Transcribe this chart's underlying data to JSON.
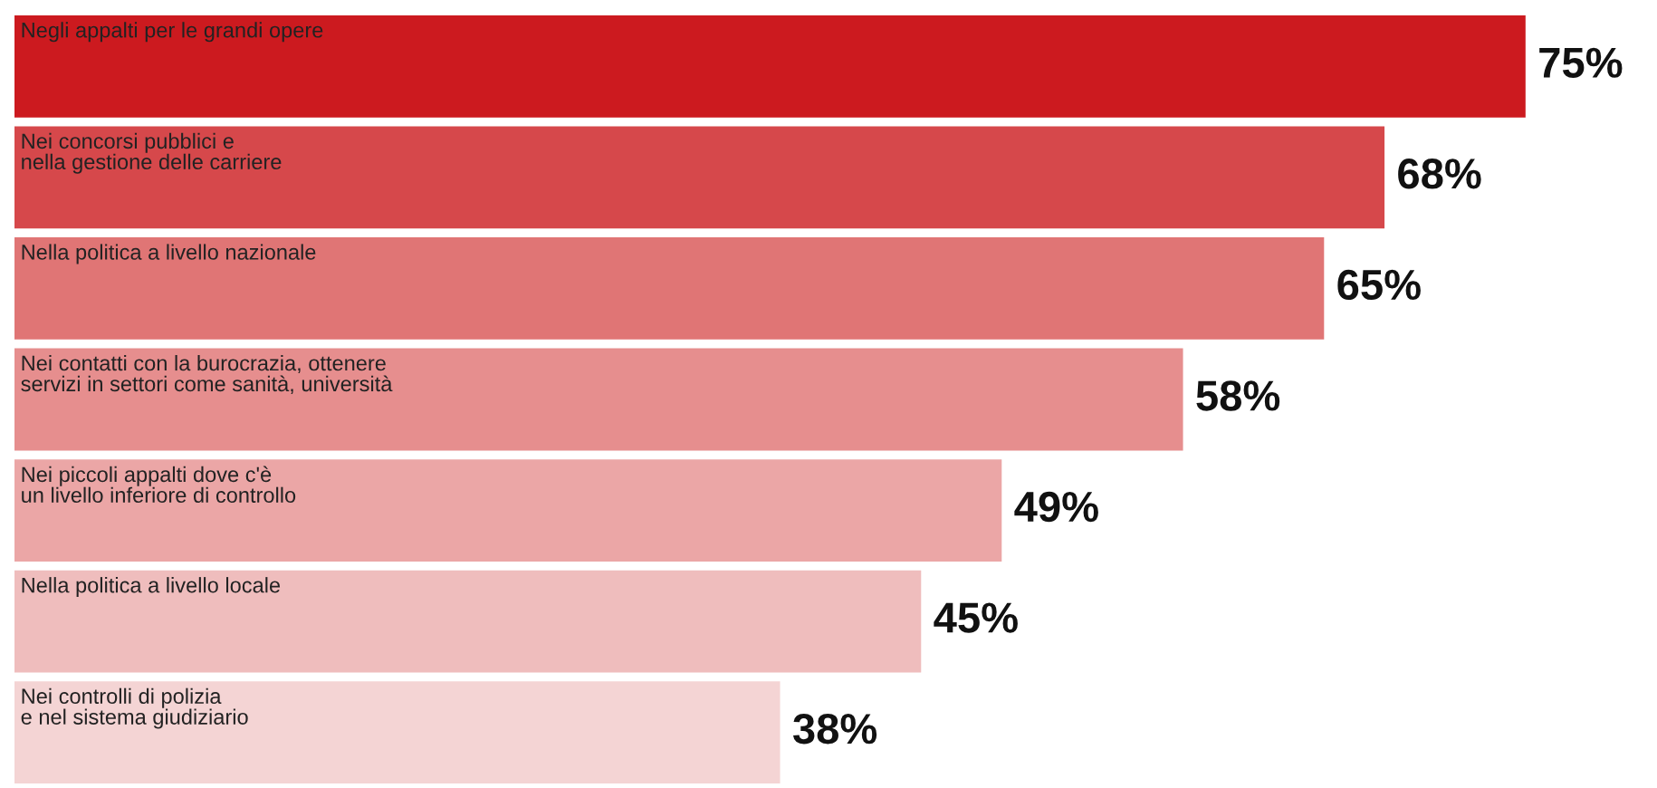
{
  "chart_data": {
    "type": "bar",
    "orientation": "horizontal",
    "categories": [
      "Negli appalti per le grandi opere",
      "Nei concorsi pubblici e\nnella gestione delle carriere",
      "Nella politica a livello nazionale",
      "Nei contatti con la burocrazia, ottenere\nservizi in settori come sanità, università",
      "Nei piccoli appalti dove c'è\nun livello inferiore di controllo",
      "Nella politica a livello locale",
      "Nei controlli di polizia\ne nel sistema giudiziario"
    ],
    "values": [
      75,
      68,
      65,
      58,
      49,
      45,
      38
    ],
    "colors": [
      "#cc1a1f",
      "#d6484b",
      "#e07575",
      "#e68e8e",
      "#eba6a6",
      "#efbdbd",
      "#f4d4d4"
    ],
    "value_labels": [
      "75%",
      "68%",
      "65%",
      "58%",
      "49%",
      "45%",
      "38%"
    ],
    "legend": false
  }
}
